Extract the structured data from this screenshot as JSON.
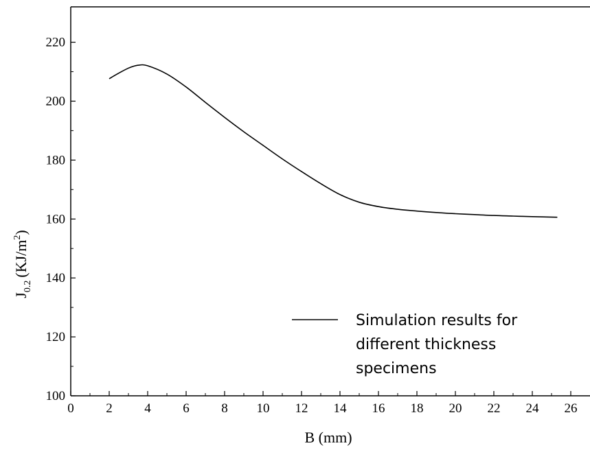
{
  "chart_data": {
    "type": "line",
    "title": "",
    "xlabel": "B (mm)",
    "ylabel": {
      "base": "J",
      "subscript": "0.2",
      "unit_prefix": "(KJ/m",
      "unit_superscript": "2",
      "unit_suffix": ")"
    },
    "xlim": [
      0,
      27
    ],
    "ylim": [
      100,
      232
    ],
    "x_ticks": [
      0,
      2,
      4,
      6,
      8,
      10,
      12,
      14,
      16,
      18,
      20,
      22,
      24,
      26
    ],
    "y_ticks": [
      100,
      120,
      140,
      160,
      180,
      200,
      220
    ],
    "grid": false,
    "legend": {
      "placement": "lower-right",
      "lines": [
        "Simulation results for",
        "different thickness",
        "specimens"
      ]
    },
    "series": [
      {
        "name": "Simulation results for different thickness specimens",
        "color": "#000000",
        "x": [
          2,
          2.5,
          3,
          3.5,
          4,
          5,
          6,
          7,
          8,
          9,
          10,
          11,
          12,
          13,
          14,
          15,
          16,
          17,
          18,
          19,
          20,
          21,
          22,
          23,
          24,
          25.3
        ],
        "y": [
          207.6,
          209.5,
          211.2,
          212.2,
          212.0,
          209.2,
          204.8,
          199.6,
          194.5,
          189.6,
          185.0,
          180.4,
          176.1,
          172.0,
          168.3,
          165.7,
          164.2,
          163.3,
          162.7,
          162.2,
          161.8,
          161.5,
          161.2,
          161.0,
          160.8,
          160.6
        ]
      }
    ]
  }
}
